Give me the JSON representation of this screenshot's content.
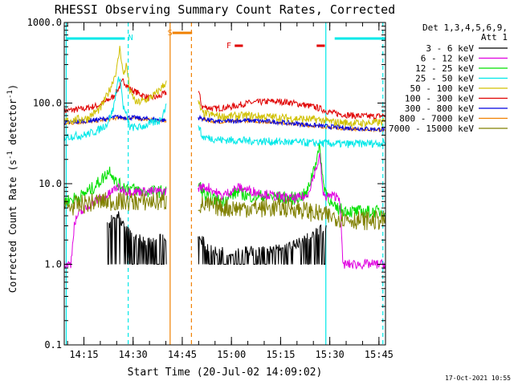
{
  "chart_data": {
    "type": "line",
    "title": "RHESSI Observing Summary Count Rates, Corrected",
    "xlabel": "Start Time (20-Jul-02 14:09:02)",
    "ylabel_main": "Corrected Count Rate (s",
    "ylabel_sup1": "-1",
    "ylabel_mid": " detector",
    "ylabel_sup2": "-1",
    "ylabel_end": ")",
    "yscale": "log",
    "ylim": [
      0.1,
      1000
    ],
    "xlim_minutes": [
      0,
      98
    ],
    "y_ticks": [
      {
        "value": 1000,
        "label": "1000.0"
      },
      {
        "value": 100,
        "label": "100.0"
      },
      {
        "value": 10,
        "label": "10.0"
      },
      {
        "value": 1,
        "label": "1.0"
      },
      {
        "value": 0.1,
        "label": "0.1"
      }
    ],
    "x_ticks": [
      {
        "minute": 6,
        "label": "14:15"
      },
      {
        "minute": 21,
        "label": "14:30"
      },
      {
        "minute": 36,
        "label": "14:45"
      },
      {
        "minute": 51,
        "label": "15:00"
      },
      {
        "minute": 66,
        "label": "15:15"
      },
      {
        "minute": 81,
        "label": "15:30"
      },
      {
        "minute": 96,
        "label": "15:45"
      }
    ],
    "legend": {
      "header1": "Det 1,3,4,5,6,9,",
      "header2": "Att 1",
      "entries": [
        {
          "label": "3 - 6 keV",
          "color": "#000000"
        },
        {
          "label": "6 - 12 keV",
          "color": "#e000e0"
        },
        {
          "label": "12 - 25 keV",
          "color": "#00e000"
        },
        {
          "label": "25 - 50 keV",
          "color": "#00e8e8"
        },
        {
          "label": "50 - 100 keV",
          "color": "#d0c000"
        },
        {
          "label": "100 - 300 keV",
          "color": "#e00000"
        },
        {
          "label": "300 - 800 keV",
          "color": "#0000e0"
        },
        {
          "label": "800 - 7000 keV",
          "color": "#f08000"
        },
        {
          "label": "7000 - 15000 keV",
          "color": "#808000"
        }
      ]
    },
    "flags": [
      {
        "label": "N",
        "color": "#00e8e8",
        "x": 19.5
      },
      {
        "label": "S",
        "color": "#f08000",
        "x": 31.5
      },
      {
        "label": "F",
        "color": "#e00000",
        "x": 49.5
      }
    ],
    "intervals": [
      {
        "name": "night",
        "color": "#00e8e8",
        "from": 0.5,
        "to": 18.5
      },
      {
        "name": "night",
        "color": "#00e8e8",
        "from": 82.5,
        "to": 98
      },
      {
        "name": "saa",
        "color": "#f08000",
        "from": 33,
        "to": 39
      },
      {
        "name": "flare",
        "color": "#e00000",
        "from": 52,
        "to": 54.5
      },
      {
        "name": "flare",
        "color": "#e00000",
        "from": 77,
        "to": 79.5
      }
    ],
    "vlines": [
      {
        "x": 0.6,
        "color": "#00e8e8",
        "dash": false
      },
      {
        "x": 19.5,
        "color": "#00e8e8",
        "dash": true
      },
      {
        "x": 32.3,
        "color": "#f08000",
        "dash": false
      },
      {
        "x": 38.8,
        "color": "#f08000",
        "dash": true
      },
      {
        "x": 79.8,
        "color": "#00e8e8",
        "dash": false
      },
      {
        "x": 97.2,
        "color": "#00e8e8",
        "dash": true
      }
    ],
    "series": [
      {
        "name": "100 - 300 keV",
        "color": "#e00000",
        "noise": 0.04,
        "points": [
          [
            0,
            80
          ],
          [
            6,
            85
          ],
          [
            11,
            95
          ],
          [
            15,
            120
          ],
          [
            18,
            190
          ],
          [
            20,
            150
          ],
          [
            23,
            130
          ],
          [
            26,
            115
          ],
          [
            29,
            120
          ],
          [
            31,
            135
          ],
          [
            41,
            140
          ],
          [
            42,
            90
          ],
          [
            46,
            85
          ],
          [
            51,
            90
          ],
          [
            56,
            100
          ],
          [
            63,
            105
          ],
          [
            68,
            103
          ],
          [
            73,
            95
          ],
          [
            77,
            88
          ],
          [
            82,
            75
          ],
          [
            88,
            70
          ],
          [
            94,
            68
          ],
          [
            98,
            70
          ]
        ]
      },
      {
        "name": "800 - 7000 keV",
        "color": "#f08000",
        "noise": 0.02,
        "points": [
          [
            0,
            55
          ],
          [
            10,
            60
          ],
          [
            16,
            65
          ],
          [
            21,
            65
          ],
          [
            26,
            62
          ],
          [
            31,
            60
          ],
          [
            41,
            65
          ],
          [
            46,
            58
          ],
          [
            56,
            60
          ],
          [
            66,
            57
          ],
          [
            76,
            52
          ],
          [
            86,
            48
          ],
          [
            98,
            46
          ]
        ]
      },
      {
        "name": "300 - 800 keV",
        "color": "#0000e0",
        "noise": 0.03,
        "points": [
          [
            0,
            57
          ],
          [
            10,
            62
          ],
          [
            16,
            67
          ],
          [
            21,
            66
          ],
          [
            26,
            63
          ],
          [
            31,
            61
          ],
          [
            41,
            66
          ],
          [
            46,
            59
          ],
          [
            56,
            61
          ],
          [
            66,
            58
          ],
          [
            76,
            53
          ],
          [
            86,
            49
          ],
          [
            98,
            47
          ]
        ]
      },
      {
        "name": "50 - 100 keV",
        "color": "#d0c000",
        "noise": 0.05,
        "points": [
          [
            0,
            60
          ],
          [
            7,
            65
          ],
          [
            11,
            85
          ],
          [
            14,
            150
          ],
          [
            16,
            260
          ],
          [
            17,
            500
          ],
          [
            18,
            220
          ],
          [
            19,
            300
          ],
          [
            20,
            140
          ],
          [
            22,
            100
          ],
          [
            25,
            110
          ],
          [
            28,
            130
          ],
          [
            31,
            180
          ],
          [
            41,
            100
          ],
          [
            42,
            75
          ],
          [
            48,
            68
          ],
          [
            56,
            70
          ],
          [
            66,
            66
          ],
          [
            74,
            63
          ],
          [
            78,
            62
          ],
          [
            82,
            58
          ],
          [
            90,
            56
          ],
          [
            98,
            58
          ]
        ]
      },
      {
        "name": "25 - 50 keV",
        "color": "#00e8e8",
        "noise": 0.05,
        "points": [
          [
            0,
            38
          ],
          [
            6,
            40
          ],
          [
            10,
            45
          ],
          [
            13,
            55
          ],
          [
            15,
            85
          ],
          [
            16,
            160
          ],
          [
            17,
            220
          ],
          [
            18,
            90
          ],
          [
            19,
            70
          ],
          [
            20,
            50
          ],
          [
            23,
            50
          ],
          [
            26,
            55
          ],
          [
            29,
            60
          ],
          [
            31,
            90
          ],
          [
            41,
            55
          ],
          [
            42,
            38
          ],
          [
            48,
            35
          ],
          [
            56,
            34
          ],
          [
            66,
            33
          ],
          [
            76,
            32
          ],
          [
            86,
            31
          ],
          [
            98,
            32
          ]
        ]
      },
      {
        "name": "12 - 25 keV",
        "color": "#00e000",
        "noise": 0.08,
        "points": [
          [
            0,
            6
          ],
          [
            5,
            7
          ],
          [
            9,
            9
          ],
          [
            12,
            12
          ],
          [
            14,
            15
          ],
          [
            16,
            10
          ],
          [
            19,
            9
          ],
          [
            24,
            8
          ],
          [
            28,
            8
          ],
          [
            31,
            8
          ],
          [
            41,
            10
          ],
          [
            43,
            7
          ],
          [
            48,
            6
          ],
          [
            53,
            8
          ],
          [
            56,
            7
          ],
          [
            62,
            7
          ],
          [
            70,
            6.5
          ],
          [
            74,
            7.5
          ],
          [
            76,
            15
          ],
          [
            78,
            28
          ],
          [
            79,
            10
          ],
          [
            82,
            5
          ],
          [
            88,
            4.5
          ],
          [
            98,
            4.5
          ]
        ]
      },
      {
        "name": "6 - 12 keV",
        "color": "#e000e0",
        "noise": 0.06,
        "points": [
          [
            0,
            1
          ],
          [
            2,
            1
          ],
          [
            3,
            3
          ],
          [
            4,
            4
          ],
          [
            9,
            6
          ],
          [
            13,
            7
          ],
          [
            16,
            9
          ],
          [
            19,
            8
          ],
          [
            24,
            8
          ],
          [
            31,
            8
          ],
          [
            41,
            9
          ],
          [
            44,
            9
          ],
          [
            48,
            7
          ],
          [
            53,
            9
          ],
          [
            58,
            8
          ],
          [
            64,
            7
          ],
          [
            70,
            6.5
          ],
          [
            74,
            7
          ],
          [
            76,
            12
          ],
          [
            78,
            22
          ],
          [
            79,
            7
          ],
          [
            82,
            7
          ],
          [
            84,
            7
          ],
          [
            85,
            1
          ],
          [
            98,
            1
          ]
        ]
      },
      {
        "name": "7000 - 15000 keV",
        "color": "#808000",
        "noise": 0.12,
        "points": [
          [
            0,
            5
          ],
          [
            10,
            6
          ],
          [
            20,
            6
          ],
          [
            31,
            6
          ],
          [
            41,
            5.5
          ],
          [
            50,
            5
          ],
          [
            60,
            5
          ],
          [
            70,
            5
          ],
          [
            80,
            4
          ],
          [
            90,
            3.5
          ],
          [
            98,
            3.5
          ]
        ]
      },
      {
        "name": "3 - 6 keV",
        "color": "#000000",
        "noise": 0.0,
        "spiky": true,
        "points": [
          [
            13,
            2
          ],
          [
            16,
            3
          ],
          [
            18,
            2
          ],
          [
            21,
            1.5
          ],
          [
            25,
            1.3
          ],
          [
            31,
            1.5
          ],
          [
            41,
            1.5
          ],
          [
            45,
            1
          ],
          [
            62,
            1
          ],
          [
            70,
            1.2
          ],
          [
            75,
            1.5
          ],
          [
            78,
            1.8
          ],
          [
            80,
            2
          ]
        ]
      }
    ]
  },
  "timestamp": "17-Oct-2021 10:55"
}
